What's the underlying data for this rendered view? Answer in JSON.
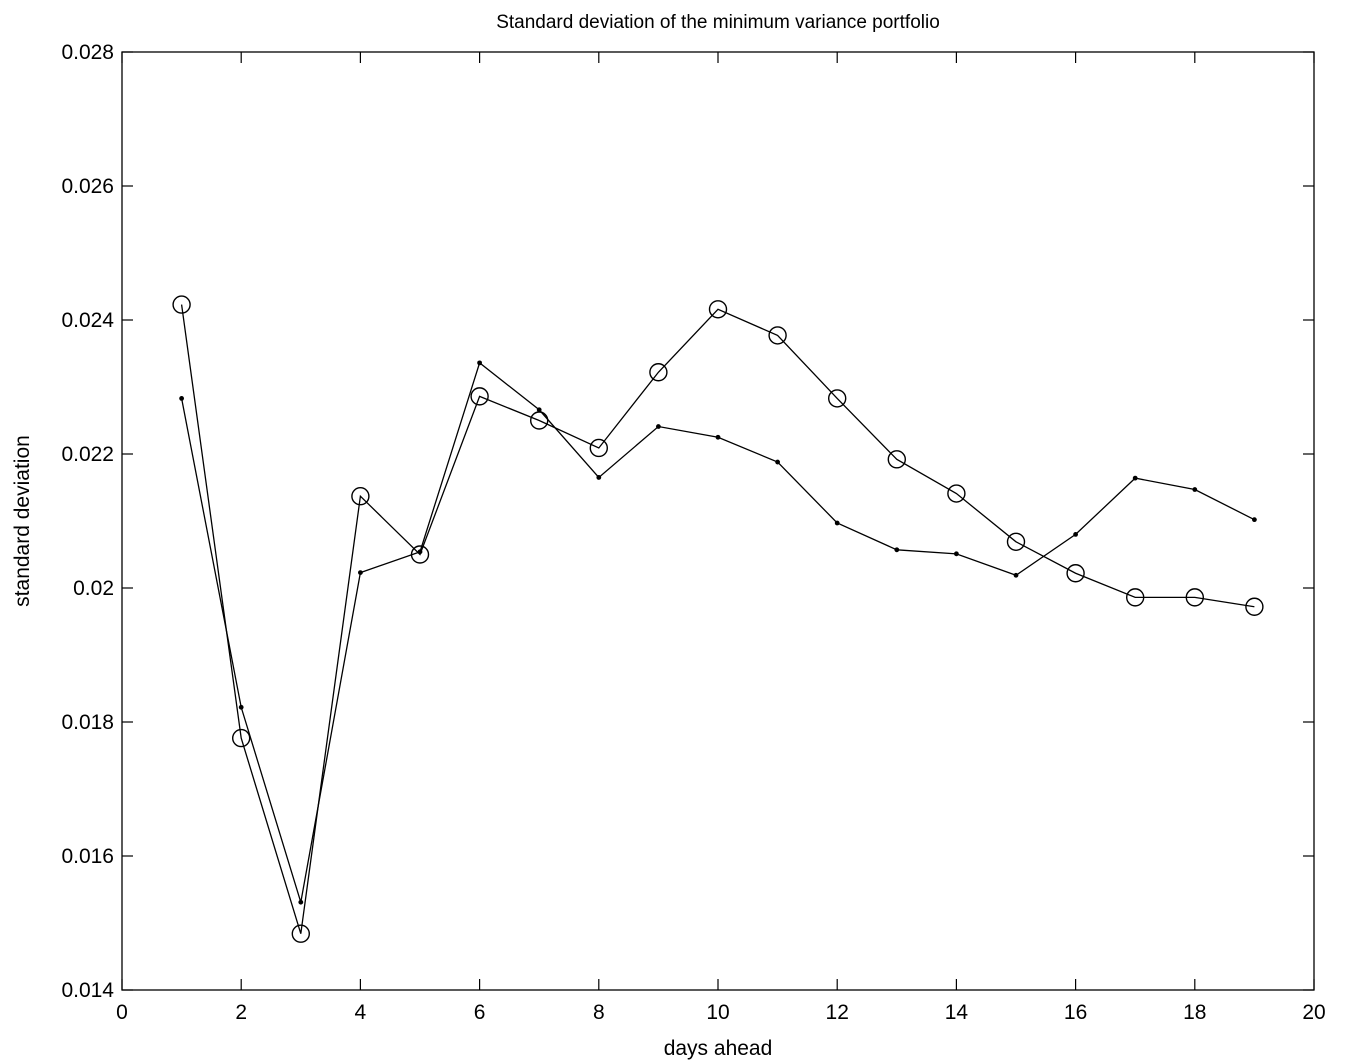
{
  "chart_data": {
    "type": "line",
    "title": "Standard deviation of the minimum variance portfolio",
    "xlabel": "days ahead",
    "ylabel": "standard deviation",
    "xlim": [
      0,
      20
    ],
    "ylim": [
      0.014,
      0.028
    ],
    "x_ticks": [
      "0",
      "2",
      "4",
      "6",
      "8",
      "10",
      "12",
      "14",
      "16",
      "18",
      "20"
    ],
    "y_ticks": [
      "0.014",
      "0.016",
      "0.018",
      "0.02",
      "0.022",
      "0.024",
      "0.026",
      "0.028"
    ],
    "grid": false,
    "x": [
      1,
      2,
      3,
      4,
      5,
      6,
      7,
      8,
      9,
      10,
      11,
      12,
      13,
      14,
      15,
      16,
      17,
      18,
      19
    ],
    "series": [
      {
        "marker": "circle",
        "color": "#000000",
        "values": [
          0.02423,
          0.01776,
          0.01484,
          0.02137,
          0.0205,
          0.02286,
          0.0225,
          0.02209,
          0.02322,
          0.02416,
          0.02377,
          0.02283,
          0.02192,
          0.02141,
          0.02069,
          0.02022,
          0.01986,
          0.01986,
          0.01972
        ]
      },
      {
        "marker": "dot",
        "color": "#000000",
        "values": [
          0.02283,
          0.01822,
          0.01531,
          0.02023,
          0.02054,
          0.02336,
          0.02266,
          0.02165,
          0.02241,
          0.02225,
          0.02188,
          0.02097,
          0.02057,
          0.02051,
          0.02019,
          0.0208,
          0.02164,
          0.02147,
          0.02102
        ]
      }
    ]
  }
}
